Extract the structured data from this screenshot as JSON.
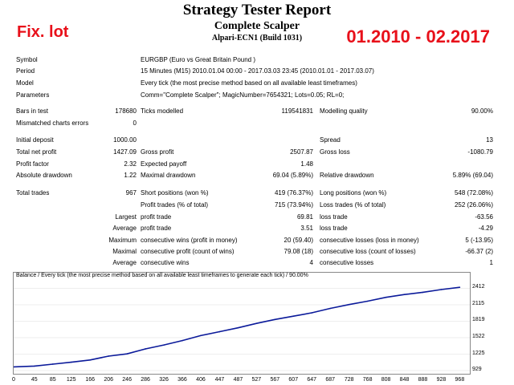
{
  "report": {
    "title": "Strategy Tester Report",
    "subtitle": "Complete Scalper",
    "build": "Alpari-ECN1 (Build 1031)"
  },
  "overlay": {
    "left": "Fix. lot",
    "right": "01.2010 - 02.2017"
  },
  "info": [
    {
      "label": "Symbol",
      "value": "EURGBP (Euro vs Great Britain Pound )"
    },
    {
      "label": "Period",
      "value": "15 Minutes (M15) 2010.01.04 00:00 - 2017.03.03 23:45 (2010.01.01 - 2017.03.07)"
    },
    {
      "label": "Model",
      "value": "Every tick (the most precise method based on all available least timeframes)"
    },
    {
      "label": "Parameters",
      "value": "Comm=\"Complete Scalper\"; MagicNumber=7654321; Lots=0.05; RL=0;"
    }
  ],
  "stats": {
    "bars_label": "Bars in test",
    "bars_value": "178680",
    "ticks_label": "Ticks modelled",
    "ticks_value": "119541831",
    "quality_label": "Modelling quality",
    "quality_value": "90.00%",
    "mismatch_label": "Mismatched charts errors",
    "mismatch_value": "0",
    "deposit_label": "Initial deposit",
    "deposit_value": "1000.00",
    "spread_label": "Spread",
    "spread_value": "13",
    "netprofit_label": "Total net profit",
    "netprofit_value": "1427.09",
    "grossprofit_label": "Gross profit",
    "grossprofit_value": "2507.87",
    "grossloss_label": "Gross loss",
    "grossloss_value": "-1080.79",
    "pf_label": "Profit factor",
    "pf_value": "2.32",
    "ep_label": "Expected payoff",
    "ep_value": "1.48",
    "absdd_label": "Absolute drawdown",
    "absdd_value": "1.22",
    "maxdd_label": "Maximal drawdown",
    "maxdd_value": "69.04 (5.89%)",
    "reldd_label": "Relative drawdown",
    "reldd_value": "5.89% (69.04)",
    "trades_label": "Total trades",
    "trades_value": "967",
    "short_label": "Short positions (won %)",
    "short_value": "419 (76.37%)",
    "long_label": "Long positions (won %)",
    "long_value": "548 (72.08%)",
    "pt_label": "Profit trades (% of total)",
    "pt_value": "715 (73.94%)",
    "lt_label": "Loss trades (% of total)",
    "lt_value": "252 (26.06%)",
    "largest": "Largest",
    "average": "Average",
    "maximum": "Maximum",
    "maximal": "Maximal",
    "lpt_label": "profit trade",
    "lpt_value": "69.81",
    "llt_label": "loss trade",
    "llt_value": "-63.56",
    "apt_label": "profit trade",
    "apt_value": "3.51",
    "alt_label": "loss trade",
    "alt_value": "-4.29",
    "mcw_label": "consecutive wins (profit in money)",
    "mcw_value": "20 (59.40)",
    "mcl_label": "consecutive losses (loss in money)",
    "mcl_value": "5 (-13.95)",
    "mcp_label": "consecutive profit (count of wins)",
    "mcp_value": "79.08 (18)",
    "mcll_label": "consecutive loss (count of losses)",
    "mcll_value": "-66.37 (2)",
    "acw_label": "consecutive wins",
    "acw_value": "4",
    "acl_label": "consecutive losses",
    "acl_value": "1"
  },
  "chart_data": {
    "type": "line",
    "title": "Balance / Every tick (the most precise method based on all available least timeframes to generate each tick) / 90.00%",
    "x": [
      0,
      45,
      85,
      125,
      166,
      206,
      246,
      286,
      326,
      366,
      406,
      447,
      487,
      527,
      567,
      607,
      647,
      687,
      728,
      768,
      808,
      848,
      888,
      928,
      968
    ],
    "y": [
      995,
      1010,
      1045,
      1080,
      1120,
      1190,
      1230,
      1320,
      1390,
      1470,
      1560,
      1630,
      1700,
      1780,
      1850,
      1910,
      1970,
      2050,
      2120,
      2180,
      2250,
      2300,
      2340,
      2390,
      2430
    ],
    "yticks": [
      929,
      1225,
      1522,
      1819,
      2115,
      2412
    ],
    "xticks": [
      0,
      45,
      85,
      125,
      166,
      206,
      246,
      286,
      326,
      366,
      406,
      447,
      487,
      527,
      567,
      607,
      647,
      687,
      728,
      768,
      808,
      848,
      888,
      928,
      968
    ],
    "ylim": [
      929,
      2520
    ],
    "xlim": [
      0,
      990
    ],
    "line_color": "#0b1a9a"
  }
}
